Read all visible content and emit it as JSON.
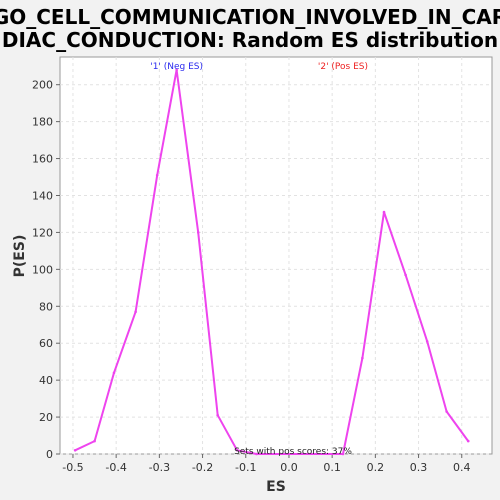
{
  "chart_data": {
    "type": "line",
    "title_lines": [
      "GO_CELL_COMMUNICATION_INVOLVED_IN_CAR",
      "DIAC_CONDUCTION: Random ES distribution"
    ],
    "xlabel": "ES",
    "ylabel": "P(ES)",
    "xlim": [
      -0.53,
      0.47
    ],
    "ylim": [
      0,
      215
    ],
    "x_ticks": [
      -0.5,
      -0.4,
      -0.3,
      -0.2,
      -0.1,
      0.0,
      0.1,
      0.2,
      0.3,
      0.4
    ],
    "x_tick_labels": [
      "-0.5",
      "-0.4",
      "-0.3",
      "-0.2",
      "-0.1",
      "0.0",
      "0.1",
      "0.2",
      "0.3",
      "0.4"
    ],
    "y_ticks": [
      0,
      20,
      40,
      60,
      80,
      100,
      120,
      140,
      160,
      180,
      200
    ],
    "y_tick_labels": [
      "0",
      "20",
      "40",
      "60",
      "80",
      "100",
      "120",
      "140",
      "160",
      "180",
      "200"
    ],
    "grid": true,
    "line_color": "#ee44ee",
    "series": [
      {
        "x": [
          -0.495,
          -0.45,
          -0.405,
          -0.355,
          -0.305,
          -0.26,
          -0.21,
          -0.165,
          -0.12,
          -0.075,
          0.125,
          0.17,
          0.22,
          0.27,
          0.32,
          0.365,
          0.415
        ],
        "y": [
          2,
          7,
          44,
          77,
          151,
          208,
          120,
          21,
          2,
          0,
          0,
          52,
          131,
          97,
          61,
          23,
          7
        ]
      }
    ],
    "annotations": [
      {
        "text": "'1' (Neg ES)",
        "x": -0.26,
        "color": "#2a2aee"
      },
      {
        "text": "'2' (Pos ES)",
        "x": 0.125,
        "color": "#ee2222"
      }
    ],
    "footer": "Sets with pos scores: 37%"
  }
}
